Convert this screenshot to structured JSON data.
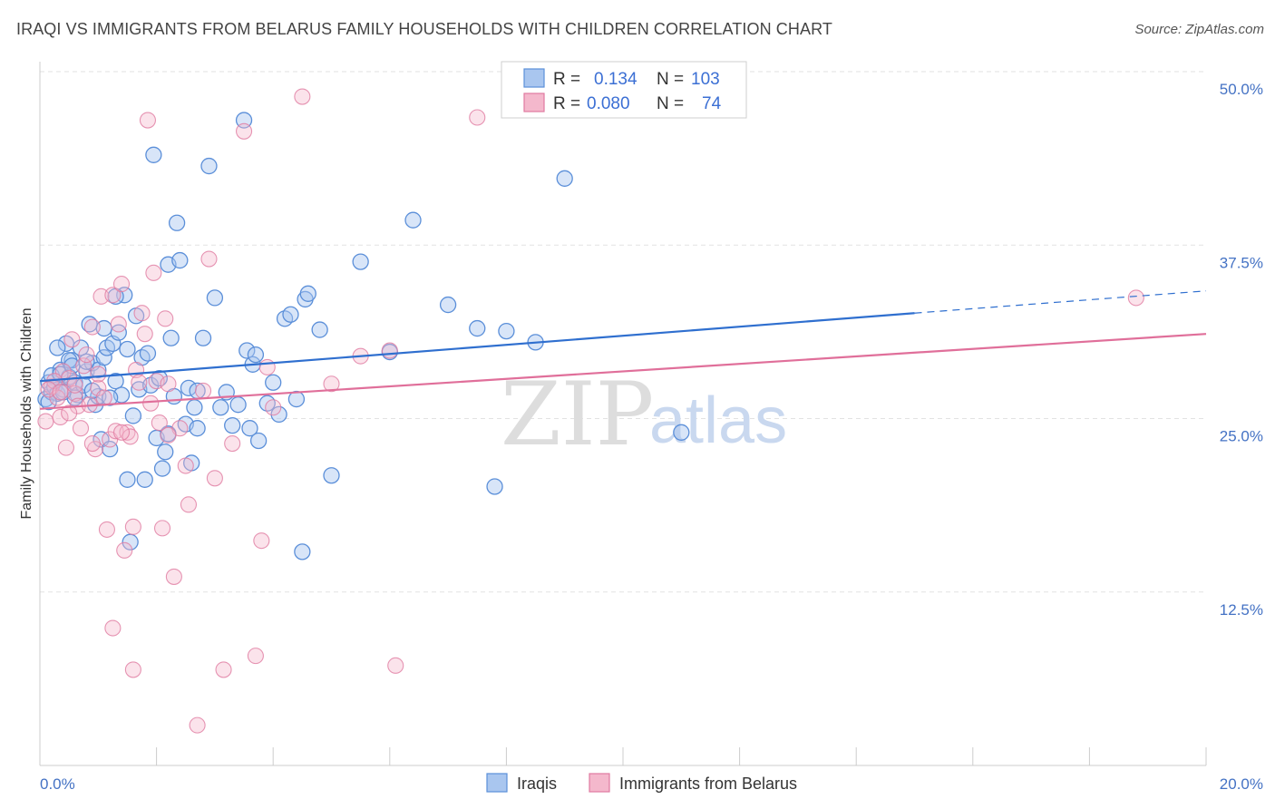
{
  "title": "IRAQI VS IMMIGRANTS FROM BELARUS FAMILY HOUSEHOLDS WITH CHILDREN CORRELATION CHART",
  "source": "Source: ZipAtlas.com",
  "watermark": {
    "zip": "ZIP",
    "atlas": "atlas"
  },
  "colors": {
    "blue": "#5b8fd9",
    "blue_fill": "#a9c6ef",
    "pink": "#e07aa0",
    "pink_fill": "#f4b8cc",
    "blue_line": "#2f6fcf",
    "pink_line": "#e06f9a"
  },
  "legend_top": {
    "rows": [
      {
        "r_label": "R =",
        "r_value": "0.134",
        "n_label": "N =",
        "n_value": "103"
      },
      {
        "r_label": "R =",
        "r_value": "0.080",
        "n_label": "N =",
        "n_value": "74"
      }
    ]
  },
  "legend_bottom": [
    "Iraqis",
    "Immigrants from Belarus"
  ],
  "chart_data": {
    "type": "scatter",
    "xlabel": "",
    "ylabel": "Family Households with Children",
    "xlim": [
      0,
      20
    ],
    "ylim": [
      0,
      50
    ],
    "x_tick_labels": [
      "0.0%",
      "20.0%"
    ],
    "y_ticks": [
      12.5,
      25.0,
      37.5,
      50.0
    ],
    "y_tick_labels": [
      "12.5%",
      "25.0%",
      "37.5%",
      "50.0%"
    ],
    "grid": "horizontal dashed",
    "legend_placement": "top-center",
    "series": [
      {
        "name": "Iraqis",
        "trend": {
          "x0": 0,
          "y0": 27.7,
          "x1": 15.0,
          "y1": 32.6,
          "dash_to_x": 20,
          "dash_to_y": 34.2
        },
        "points": [
          [
            0.1,
            26.4
          ],
          [
            0.15,
            27.6
          ],
          [
            0.2,
            26.9
          ],
          [
            0.25,
            27.3
          ],
          [
            0.3,
            26.8
          ],
          [
            0.35,
            28.5
          ],
          [
            0.4,
            27.1
          ],
          [
            0.45,
            30.4
          ],
          [
            0.5,
            28.0
          ],
          [
            0.55,
            29.2
          ],
          [
            0.6,
            27.6
          ],
          [
            0.65,
            26.7
          ],
          [
            0.7,
            30.1
          ],
          [
            0.75,
            27.4
          ],
          [
            0.8,
            28.4
          ],
          [
            0.85,
            31.8
          ],
          [
            0.9,
            29.0
          ],
          [
            0.95,
            26.0
          ],
          [
            1.0,
            28.5
          ],
          [
            1.05,
            23.5
          ],
          [
            1.1,
            29.4
          ],
          [
            1.15,
            30.1
          ],
          [
            1.2,
            22.8
          ],
          [
            1.25,
            30.4
          ],
          [
            1.3,
            27.7
          ],
          [
            1.35,
            31.2
          ],
          [
            1.4,
            26.7
          ],
          [
            1.45,
            33.9
          ],
          [
            1.5,
            20.6
          ],
          [
            1.55,
            16.1
          ],
          [
            1.6,
            25.2
          ],
          [
            1.65,
            32.4
          ],
          [
            1.7,
            27.1
          ],
          [
            1.75,
            29.4
          ],
          [
            1.8,
            20.6
          ],
          [
            1.85,
            29.7
          ],
          [
            1.9,
            27.4
          ],
          [
            1.95,
            44.0
          ],
          [
            2.0,
            23.6
          ],
          [
            2.05,
            27.9
          ],
          [
            2.1,
            21.4
          ],
          [
            2.15,
            22.6
          ],
          [
            2.2,
            36.1
          ],
          [
            2.25,
            30.8
          ],
          [
            2.3,
            26.6
          ],
          [
            2.35,
            39.1
          ],
          [
            2.4,
            36.4
          ],
          [
            2.5,
            24.6
          ],
          [
            2.55,
            27.2
          ],
          [
            2.6,
            21.8
          ],
          [
            2.65,
            25.8
          ],
          [
            2.7,
            24.3
          ],
          [
            2.8,
            30.8
          ],
          [
            2.9,
            43.2
          ],
          [
            3.0,
            33.7
          ],
          [
            3.1,
            25.8
          ],
          [
            3.2,
            26.9
          ],
          [
            3.3,
            24.5
          ],
          [
            3.4,
            26.0
          ],
          [
            3.5,
            46.5
          ],
          [
            3.55,
            29.9
          ],
          [
            3.6,
            24.3
          ],
          [
            3.65,
            28.9
          ],
          [
            3.7,
            29.6
          ],
          [
            3.75,
            23.4
          ],
          [
            3.9,
            26.1
          ],
          [
            4.0,
            27.6
          ],
          [
            4.1,
            25.3
          ],
          [
            4.2,
            32.2
          ],
          [
            4.3,
            32.5
          ],
          [
            4.4,
            26.4
          ],
          [
            4.5,
            15.4
          ],
          [
            4.55,
            33.6
          ],
          [
            4.6,
            34.0
          ],
          [
            4.8,
            31.4
          ],
          [
            5.0,
            20.9
          ],
          [
            5.5,
            36.3
          ],
          [
            6.0,
            29.8
          ],
          [
            6.4,
            39.3
          ],
          [
            7.0,
            33.2
          ],
          [
            7.5,
            31.5
          ],
          [
            7.8,
            20.1
          ],
          [
            8.0,
            31.3
          ],
          [
            8.5,
            30.5
          ],
          [
            9.0,
            42.3
          ],
          [
            1.0,
            26.6
          ],
          [
            0.5,
            29.2
          ],
          [
            0.3,
            30.1
          ],
          [
            1.2,
            26.5
          ],
          [
            0.2,
            28.1
          ],
          [
            0.6,
            26.5
          ],
          [
            0.9,
            27.0
          ],
          [
            1.1,
            31.5
          ],
          [
            2.2,
            23.9
          ],
          [
            1.3,
            33.8
          ],
          [
            0.4,
            26.9
          ],
          [
            0.35,
            28.2
          ],
          [
            0.8,
            29.1
          ],
          [
            1.5,
            30.0
          ],
          [
            2.7,
            27.0
          ],
          [
            0.15,
            26.2
          ],
          [
            0.55,
            28.8
          ],
          [
            11.0,
            24.0
          ]
        ]
      },
      {
        "name": "Immigrants from Belarus",
        "trend": {
          "x0": 0,
          "y0": 25.7,
          "x1": 20,
          "y1": 31.1
        },
        "points": [
          [
            0.1,
            24.8
          ],
          [
            0.2,
            27.3
          ],
          [
            0.3,
            26.5
          ],
          [
            0.35,
            25.1
          ],
          [
            0.4,
            28.4
          ],
          [
            0.45,
            22.9
          ],
          [
            0.5,
            27.9
          ],
          [
            0.55,
            30.7
          ],
          [
            0.6,
            26.8
          ],
          [
            0.65,
            25.9
          ],
          [
            0.7,
            24.3
          ],
          [
            0.75,
            28.8
          ],
          [
            0.8,
            29.6
          ],
          [
            0.85,
            26.0
          ],
          [
            0.9,
            31.6
          ],
          [
            0.95,
            22.8
          ],
          [
            1.0,
            27.2
          ],
          [
            1.05,
            33.8
          ],
          [
            1.1,
            26.5
          ],
          [
            1.15,
            17.0
          ],
          [
            1.2,
            23.5
          ],
          [
            1.25,
            33.9
          ],
          [
            1.3,
            24.1
          ],
          [
            1.35,
            31.8
          ],
          [
            1.4,
            34.7
          ],
          [
            1.45,
            15.5
          ],
          [
            1.5,
            24.0
          ],
          [
            1.55,
            23.7
          ],
          [
            1.6,
            17.2
          ],
          [
            1.65,
            28.5
          ],
          [
            1.7,
            27.6
          ],
          [
            1.75,
            32.6
          ],
          [
            1.8,
            31.1
          ],
          [
            1.85,
            46.5
          ],
          [
            1.9,
            26.1
          ],
          [
            1.95,
            35.5
          ],
          [
            2.0,
            27.7
          ],
          [
            2.05,
            24.7
          ],
          [
            2.1,
            17.1
          ],
          [
            2.15,
            32.2
          ],
          [
            2.2,
            27.5
          ],
          [
            2.3,
            13.6
          ],
          [
            2.4,
            24.3
          ],
          [
            2.5,
            21.6
          ],
          [
            2.55,
            18.8
          ],
          [
            2.7,
            2.9
          ],
          [
            2.8,
            27.0
          ],
          [
            2.9,
            36.5
          ],
          [
            3.0,
            20.7
          ],
          [
            3.15,
            6.9
          ],
          [
            3.3,
            23.2
          ],
          [
            3.5,
            45.7
          ],
          [
            3.7,
            7.9
          ],
          [
            3.8,
            16.2
          ],
          [
            3.9,
            28.7
          ],
          [
            4.0,
            25.8
          ],
          [
            4.5,
            48.2
          ],
          [
            5.0,
            27.5
          ],
          [
            5.5,
            29.5
          ],
          [
            6.0,
            29.9
          ],
          [
            6.1,
            7.2
          ],
          [
            7.5,
            46.7
          ],
          [
            1.6,
            6.9
          ],
          [
            1.25,
            9.9
          ],
          [
            0.6,
            27.4
          ],
          [
            0.25,
            27.7
          ],
          [
            0.15,
            27.1
          ],
          [
            0.5,
            25.4
          ],
          [
            0.9,
            23.2
          ],
          [
            1.0,
            28.2
          ],
          [
            1.4,
            24.0
          ],
          [
            2.2,
            23.8
          ],
          [
            18.8,
            33.7
          ],
          [
            0.35,
            26.9
          ]
        ]
      }
    ]
  }
}
